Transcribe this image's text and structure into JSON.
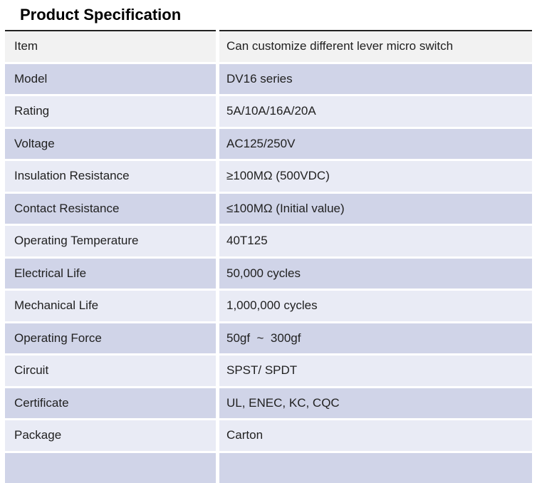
{
  "title": "Product Specification",
  "table": {
    "rows": [
      {
        "label": "Item",
        "value": "Can customize different lever micro switch"
      },
      {
        "label": "Model",
        "value": "DV16 series"
      },
      {
        "label": "Rating",
        "value": "5A/10A/16A/20A"
      },
      {
        "label": "Voltage",
        "value": "AC125/250V"
      },
      {
        "label": "Insulation Resistance",
        "value": "≥100MΩ (500VDC)"
      },
      {
        "label": "Contact Resistance",
        "value": "≤100MΩ (Initial value)"
      },
      {
        "label": "Operating Temperature",
        "value": "40T125"
      },
      {
        "label": "Electrical Life",
        "value": "50,000 cycles"
      },
      {
        "label": "Mechanical Life",
        "value": "1,000,000 cycles"
      },
      {
        "label": "Operating Force",
        "value": "50gf  ~  300gf"
      },
      {
        "label": "Circuit",
        "value": "SPST/ SPDT"
      },
      {
        "label": "Certificate",
        "value": "UL, ENEC, KC, CQC"
      },
      {
        "label": "Package",
        "value": "Carton"
      }
    ]
  },
  "colors": {
    "header_row": "#f2f2f2",
    "row_dark": "#d0d4e8",
    "row_light": "#e9ebf5",
    "top_border": "#222222",
    "text": "#212121"
  }
}
